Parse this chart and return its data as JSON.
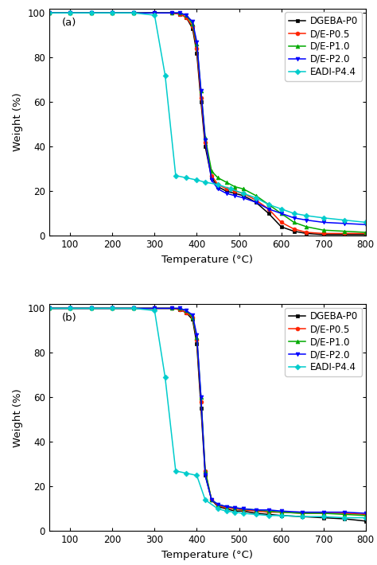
{
  "series_labels": [
    "DGEBA-P0",
    "D/E-P0.5",
    "D/E-P1.0",
    "D/E-P2.0",
    "EADI-P4.4"
  ],
  "colors": [
    "#000000",
    "#ff2200",
    "#00aa00",
    "#0000ff",
    "#00cccc"
  ],
  "markers": [
    "s",
    "o",
    "^",
    "v",
    "D"
  ],
  "markersize": 3.5,
  "markevery": 1,
  "panel_a": {
    "label": "(a)",
    "series": {
      "DGEBA-P0": {
        "x": [
          50,
          100,
          150,
          200,
          250,
          300,
          340,
          360,
          375,
          390,
          400,
          410,
          420,
          435,
          450,
          470,
          490,
          510,
          540,
          570,
          600,
          630,
          660,
          700,
          750,
          800
        ],
        "y": [
          100,
          100,
          100,
          100,
          100,
          100,
          100,
          99.5,
          98,
          93,
          82,
          60,
          40,
          26,
          22,
          20,
          19,
          18,
          15,
          10,
          4,
          2,
          1,
          0.5,
          0.5,
          0.5
        ]
      },
      "D/E-P0.5": {
        "x": [
          50,
          100,
          150,
          200,
          250,
          300,
          340,
          360,
          375,
          390,
          400,
          410,
          420,
          435,
          450,
          470,
          490,
          510,
          540,
          570,
          600,
          630,
          660,
          700,
          750,
          800
        ],
        "y": [
          100,
          100,
          100,
          100,
          100,
          100,
          100,
          99.5,
          98,
          94,
          84,
          62,
          42,
          27,
          23,
          21,
          20,
          19,
          16,
          12,
          6,
          3,
          1.5,
          1,
          1,
          1
        ]
      },
      "D/E-P1.0": {
        "x": [
          50,
          100,
          150,
          200,
          250,
          300,
          340,
          360,
          375,
          390,
          400,
          410,
          420,
          435,
          450,
          470,
          490,
          510,
          540,
          570,
          600,
          630,
          660,
          700,
          750,
          800
        ],
        "y": [
          100,
          100,
          100,
          100,
          100,
          100,
          100,
          100,
          99,
          95,
          86,
          65,
          44,
          29,
          26,
          24,
          22,
          21,
          18,
          14,
          10,
          6,
          4,
          2.5,
          2,
          1.5
        ]
      },
      "D/E-P2.0": {
        "x": [
          50,
          100,
          150,
          200,
          250,
          300,
          340,
          360,
          375,
          390,
          400,
          410,
          420,
          435,
          450,
          470,
          490,
          510,
          540,
          570,
          600,
          630,
          660,
          700,
          750,
          800
        ],
        "y": [
          100,
          100,
          100,
          100,
          100,
          100,
          100,
          100,
          99,
          96,
          87,
          65,
          43,
          25,
          21,
          19,
          18,
          17,
          15,
          12,
          10,
          8,
          7,
          6,
          5.5,
          5
        ]
      },
      "EADI-P4.4": {
        "x": [
          50,
          100,
          150,
          200,
          250,
          300,
          325,
          350,
          375,
          400,
          420,
          450,
          480,
          510,
          540,
          570,
          600,
          630,
          660,
          700,
          750,
          800
        ],
        "y": [
          100,
          100,
          100,
          100,
          100,
          99,
          72,
          27,
          26,
          25,
          24,
          23,
          21,
          19,
          17,
          14,
          12,
          10,
          9,
          8,
          7,
          6
        ]
      }
    }
  },
  "panel_b": {
    "label": "(b)",
    "series": {
      "DGEBA-P0": {
        "x": [
          50,
          100,
          150,
          200,
          250,
          300,
          340,
          360,
          375,
          390,
          400,
          410,
          420,
          435,
          450,
          470,
          490,
          510,
          540,
          570,
          600,
          650,
          700,
          750,
          800
        ],
        "y": [
          100,
          100,
          100,
          100,
          100,
          100,
          100,
          99.5,
          98,
          95,
          84,
          55,
          25,
          14,
          11,
          10,
          9,
          9,
          8,
          7.5,
          7,
          6.5,
          6,
          5.5,
          4.5
        ]
      },
      "D/E-P0.5": {
        "x": [
          50,
          100,
          150,
          200,
          250,
          300,
          340,
          360,
          375,
          390,
          400,
          410,
          420,
          435,
          450,
          470,
          490,
          510,
          540,
          570,
          600,
          650,
          700,
          750,
          800
        ],
        "y": [
          100,
          100,
          100,
          100,
          100,
          100,
          100,
          99.5,
          98,
          96,
          86,
          58,
          27,
          14,
          11.5,
          10.5,
          10,
          9.5,
          9,
          8.5,
          8.5,
          8,
          8,
          8,
          7.5
        ]
      },
      "D/E-P1.0": {
        "x": [
          50,
          100,
          150,
          200,
          250,
          300,
          340,
          360,
          375,
          390,
          400,
          410,
          420,
          435,
          450,
          470,
          490,
          510,
          540,
          570,
          600,
          650,
          700,
          750,
          800
        ],
        "y": [
          100,
          100,
          100,
          100,
          100,
          100,
          100,
          100,
          99,
          96,
          87,
          60,
          27,
          14,
          12,
          11,
          10.5,
          10,
          9.5,
          9,
          8.5,
          8,
          8,
          7.5,
          7
        ]
      },
      "D/E-P2.0": {
        "x": [
          50,
          100,
          150,
          200,
          250,
          300,
          340,
          360,
          375,
          390,
          400,
          410,
          420,
          435,
          450,
          470,
          490,
          510,
          540,
          570,
          600,
          650,
          700,
          750,
          800
        ],
        "y": [
          100,
          100,
          100,
          100,
          100,
          100,
          100,
          100,
          99,
          97,
          88,
          60,
          25,
          14,
          12,
          11,
          10.5,
          10,
          9.5,
          9.5,
          9,
          8.5,
          8.5,
          8.5,
          8
        ]
      },
      "EADI-P4.4": {
        "x": [
          50,
          100,
          150,
          200,
          250,
          300,
          325,
          350,
          375,
          400,
          420,
          450,
          470,
          490,
          510,
          540,
          570,
          600,
          650,
          700,
          750,
          800
        ],
        "y": [
          100,
          100,
          100,
          100,
          100,
          99,
          69,
          27,
          26,
          25,
          14,
          10,
          9,
          8.5,
          8,
          7.5,
          7,
          7,
          6.5,
          6.5,
          6,
          6
        ]
      }
    }
  },
  "xlabel": "Temperature (°C)",
  "ylabel": "Weight (%)",
  "xlim": [
    50,
    800
  ],
  "ylim": [
    0,
    102
  ],
  "xticks": [
    100,
    200,
    300,
    400,
    500,
    600,
    700,
    800
  ],
  "yticks": [
    0,
    20,
    40,
    60,
    80,
    100
  ],
  "legend_loc": "upper right",
  "fontsize": 8.5,
  "label_fontsize": 9.5,
  "tick_fontsize": 8.5
}
